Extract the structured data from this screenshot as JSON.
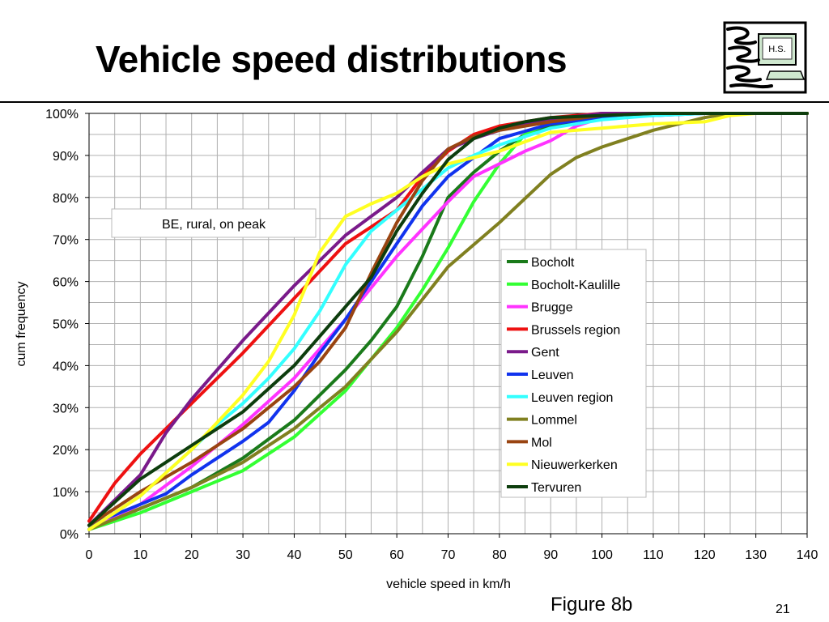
{
  "slide": {
    "title": "Vehicle speed distributions",
    "logo_text": "H.S.",
    "figure_caption": "Figure 8b",
    "page_number": "21"
  },
  "chart_data": {
    "type": "line",
    "annotation": "BE, rural, on peak",
    "xlabel": "vehicle speed in km/h",
    "ylabel": "cum frequency",
    "xlim": [
      0,
      140
    ],
    "ylim": [
      0,
      100
    ],
    "xticks": [
      0,
      10,
      20,
      30,
      40,
      50,
      60,
      70,
      80,
      90,
      100,
      110,
      120,
      130,
      140
    ],
    "yticks": [
      0,
      10,
      20,
      30,
      40,
      50,
      60,
      70,
      80,
      90,
      100
    ],
    "y_tick_suffix": "%",
    "grid": true,
    "legend_position": "right",
    "series": [
      {
        "name": "Bocholt",
        "color": "#1a7a1a",
        "x": [
          0,
          10,
          20,
          30,
          40,
          50,
          55,
          60,
          65,
          70,
          75,
          80,
          85,
          90,
          100,
          110,
          120,
          130,
          140
        ],
        "y": [
          1,
          6,
          11,
          18,
          27,
          39,
          46,
          54,
          66,
          80,
          86,
          91,
          95,
          97,
          99.5,
          100,
          100,
          100,
          100
        ]
      },
      {
        "name": "Bocholt-Kaulille",
        "color": "#33ff33",
        "x": [
          0,
          10,
          20,
          30,
          40,
          50,
          60,
          65,
          70,
          75,
          80,
          85,
          90,
          100,
          110,
          120,
          130,
          140
        ],
        "y": [
          1,
          5,
          10,
          15,
          23,
          34,
          49,
          58,
          68,
          79,
          88,
          95,
          98,
          99.5,
          100,
          100,
          100,
          100
        ]
      },
      {
        "name": "Brugge",
        "color": "#ff33ff",
        "x": [
          0,
          10,
          20,
          30,
          40,
          50,
          60,
          70,
          75,
          80,
          85,
          90,
          95,
          100,
          110,
          120,
          130,
          140
        ],
        "y": [
          1,
          7,
          16,
          26,
          37,
          51,
          66,
          79,
          85,
          88,
          91,
          93.5,
          97,
          99,
          100,
          100,
          100,
          100
        ]
      },
      {
        "name": "Brussels region",
        "color": "#ee1111",
        "x": [
          0,
          5,
          10,
          15,
          20,
          30,
          40,
          50,
          60,
          65,
          70,
          75,
          80,
          90,
          100,
          110,
          120,
          130,
          140
        ],
        "y": [
          3,
          12,
          19,
          25,
          31,
          43,
          56,
          69,
          77,
          85,
          91,
          95,
          97,
          99,
          100,
          100,
          100,
          100,
          100
        ]
      },
      {
        "name": "Gent",
        "color": "#7a1a8a",
        "x": [
          0,
          10,
          15,
          20,
          30,
          40,
          50,
          60,
          65,
          70,
          75,
          80,
          85,
          90,
          100,
          110,
          120,
          130,
          140
        ],
        "y": [
          2,
          14,
          24,
          32,
          46,
          59,
          71,
          80,
          86,
          91.5,
          94,
          96,
          97.5,
          98.5,
          100,
          100,
          100,
          100,
          100
        ]
      },
      {
        "name": "Leuven",
        "color": "#1133ee",
        "x": [
          0,
          10,
          15,
          20,
          25,
          30,
          35,
          40,
          45,
          50,
          55,
          60,
          65,
          70,
          75,
          80,
          90,
          100,
          110,
          120,
          130,
          140
        ],
        "y": [
          2,
          7,
          9.5,
          14,
          18,
          22,
          26.5,
          34,
          43,
          51,
          60,
          69,
          78,
          85,
          89.5,
          94,
          97.5,
          99,
          99.5,
          100,
          100,
          100
        ]
      },
      {
        "name": "Leuven region",
        "color": "#33ffff",
        "x": [
          0,
          10,
          20,
          25,
          30,
          35,
          40,
          45,
          50,
          55,
          60,
          65,
          70,
          75,
          80,
          90,
          100,
          110,
          120,
          130,
          140
        ],
        "y": [
          1,
          9,
          20,
          26,
          31,
          37,
          44,
          53,
          64,
          72,
          77,
          82,
          87,
          90,
          92.5,
          96.5,
          98.5,
          99.5,
          100,
          100,
          100
        ]
      },
      {
        "name": "Lommel",
        "color": "#808020",
        "x": [
          0,
          10,
          20,
          30,
          40,
          50,
          60,
          70,
          80,
          90,
          95,
          100,
          110,
          120,
          125,
          130,
          140
        ],
        "y": [
          1,
          6,
          11,
          17,
          25,
          35,
          48,
          63.5,
          74,
          85.5,
          89.5,
          92,
          96,
          99,
          100,
          100,
          100
        ]
      },
      {
        "name": "Mol",
        "color": "#994411",
        "x": [
          0,
          10,
          20,
          30,
          40,
          45,
          50,
          55,
          60,
          65,
          70,
          75,
          80,
          90,
          100,
          110,
          120,
          130,
          140
        ],
        "y": [
          2,
          10,
          17,
          25,
          35,
          41,
          49,
          62,
          74,
          84,
          91.5,
          94.5,
          96,
          98,
          99.5,
          100,
          100,
          100,
          100
        ]
      },
      {
        "name": "Nieuwerkerken",
        "color": "#ffff22",
        "x": [
          0,
          10,
          20,
          30,
          35,
          40,
          45,
          50,
          55,
          60,
          65,
          70,
          75,
          80,
          90,
          100,
          110,
          120,
          125,
          130,
          140
        ],
        "y": [
          1,
          9,
          20,
          33,
          41,
          52,
          67,
          75.5,
          78.5,
          81,
          85,
          88,
          89.5,
          91,
          95.5,
          96.5,
          97.5,
          98,
          99.5,
          100,
          100
        ]
      },
      {
        "name": "Tervuren",
        "color": "#0d3d0d",
        "x": [
          0,
          10,
          15,
          20,
          30,
          35,
          40,
          45,
          50,
          55,
          60,
          65,
          70,
          75,
          80,
          85,
          90,
          100,
          110,
          120,
          130,
          140
        ],
        "y": [
          2,
          13,
          17,
          21,
          29,
          34.5,
          40,
          47,
          54,
          61,
          72,
          81,
          89,
          94,
          96.5,
          98,
          99,
          99.5,
          100,
          100,
          100,
          100
        ]
      }
    ]
  }
}
